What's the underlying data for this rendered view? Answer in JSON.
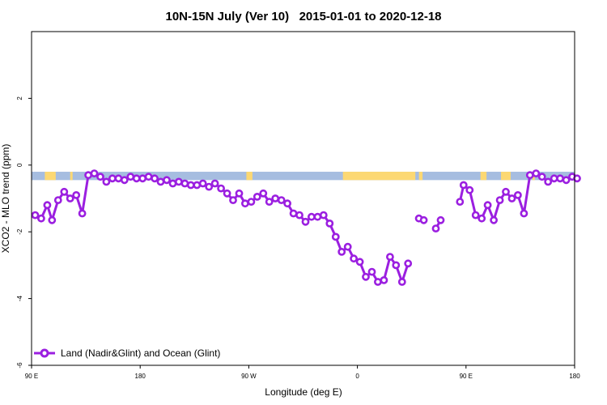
{
  "chart_data": {
    "type": "line",
    "title": "10N-15N July (Ver 10)   2015-01-01 to 2020-12-18",
    "xlabel": "Longitude (deg E)",
    "ylabel": "XCO2 - MLO trend (ppm)",
    "x_ticks": [
      {
        "value": 90,
        "label": "90 E"
      },
      {
        "value": 180,
        "label": "180"
      },
      {
        "value": 270,
        "label": "90 W"
      },
      {
        "value": 360,
        "label": "0"
      },
      {
        "value": 450,
        "label": "90 E"
      },
      {
        "value": 540,
        "label": "180"
      }
    ],
    "y_ticks": [
      {
        "value": -6,
        "label": "-6"
      },
      {
        "value": -4,
        "label": "-4"
      },
      {
        "value": -2,
        "label": "-2"
      },
      {
        "value": 0,
        "label": "0"
      },
      {
        "value": 2,
        "label": "2"
      }
    ],
    "xlim": [
      90,
      540
    ],
    "ylim": [
      -6,
      4
    ],
    "grid": false,
    "legend_position": "bottom-left",
    "band": {
      "y_range": [
        -0.45,
        -0.2
      ],
      "ocean_color": "#a6bde0",
      "land_color": "#fcd873",
      "land_segments": [
        [
          101,
          110
        ],
        [
          122,
          124
        ],
        [
          268,
          273
        ],
        [
          348,
          408
        ],
        [
          411,
          414
        ],
        [
          462,
          467
        ],
        [
          479,
          487
        ],
        [
          505,
          507
        ]
      ]
    },
    "series": [
      {
        "name": "Land (Nadir&Glint) and Ocean (Glint)",
        "color": "#9b1fe0",
        "segments": [
          [
            [
              93,
              -1.5
            ],
            [
              98,
              -1.6
            ],
            [
              103,
              -1.2
            ],
            [
              107,
              -1.65
            ],
            [
              112,
              -1.05
            ],
            [
              117,
              -0.8
            ],
            [
              122,
              -1.0
            ],
            [
              127,
              -0.9
            ],
            [
              132,
              -1.45
            ],
            [
              137,
              -0.3
            ],
            [
              142,
              -0.25
            ],
            [
              147,
              -0.35
            ],
            [
              152,
              -0.5
            ],
            [
              157,
              -0.4
            ],
            [
              162,
              -0.4
            ],
            [
              167,
              -0.45
            ],
            [
              172,
              -0.35
            ],
            [
              177,
              -0.4
            ],
            [
              182,
              -0.4
            ],
            [
              187,
              -0.35
            ],
            [
              192,
              -0.4
            ],
            [
              197,
              -0.5
            ],
            [
              202,
              -0.45
            ],
            [
              207,
              -0.55
            ],
            [
              212,
              -0.5
            ],
            [
              217,
              -0.55
            ],
            [
              222,
              -0.6
            ],
            [
              227,
              -0.6
            ],
            [
              232,
              -0.55
            ],
            [
              237,
              -0.65
            ],
            [
              242,
              -0.55
            ],
            [
              247,
              -0.7
            ],
            [
              252,
              -0.85
            ],
            [
              257,
              -1.05
            ],
            [
              262,
              -0.85
            ],
            [
              267,
              -1.15
            ],
            [
              272,
              -1.1
            ],
            [
              277,
              -0.95
            ],
            [
              282,
              -0.85
            ],
            [
              287,
              -1.1
            ],
            [
              292,
              -1.0
            ],
            [
              297,
              -1.05
            ],
            [
              302,
              -1.15
            ],
            [
              307,
              -1.45
            ],
            [
              312,
              -1.5
            ],
            [
              317,
              -1.7
            ],
            [
              322,
              -1.55
            ],
            [
              327,
              -1.55
            ],
            [
              332,
              -1.5
            ],
            [
              337,
              -1.75
            ],
            [
              342,
              -2.15
            ],
            [
              347,
              -2.6
            ],
            [
              352,
              -2.45
            ],
            [
              357,
              -2.8
            ],
            [
              362,
              -2.9
            ],
            [
              367,
              -3.35
            ],
            [
              372,
              -3.2
            ],
            [
              377,
              -3.5
            ],
            [
              382,
              -3.45
            ],
            [
              387,
              -2.75
            ],
            [
              392,
              -3.0
            ],
            [
              397,
              -3.5
            ],
            [
              402,
              -2.95
            ]
          ],
          [
            [
              411,
              -1.6
            ],
            [
              415,
              -1.65
            ]
          ],
          [
            [
              425,
              -1.9
            ],
            [
              429,
              -1.65
            ]
          ],
          [
            [
              445,
              -1.1
            ],
            [
              448,
              -0.6
            ],
            [
              453,
              -0.75
            ],
            [
              458,
              -1.5
            ],
            [
              463,
              -1.6
            ],
            [
              468,
              -1.2
            ],
            [
              473,
              -1.65
            ],
            [
              478,
              -1.05
            ],
            [
              483,
              -0.8
            ],
            [
              488,
              -1.0
            ],
            [
              493,
              -0.9
            ],
            [
              498,
              -1.45
            ],
            [
              503,
              -0.3
            ],
            [
              508,
              -0.25
            ],
            [
              513,
              -0.35
            ],
            [
              518,
              -0.5
            ],
            [
              523,
              -0.4
            ],
            [
              528,
              -0.4
            ],
            [
              533,
              -0.45
            ],
            [
              538,
              -0.35
            ],
            [
              542,
              -0.4
            ]
          ]
        ]
      }
    ]
  }
}
